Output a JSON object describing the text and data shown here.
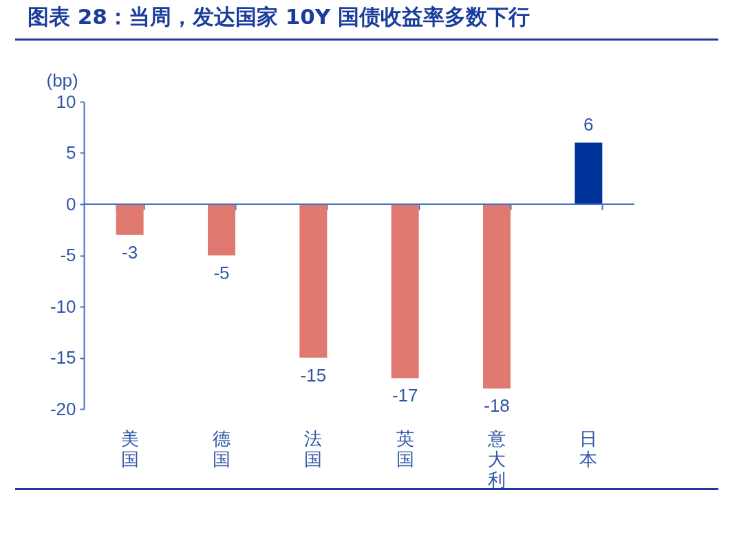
{
  "chart_data": {
    "type": "bar",
    "title": "图表 28：当周，发达国家 10Y 国债收益率多数下行",
    "ylabel": "(bp)",
    "categories": [
      "美国",
      "德国",
      "法国",
      "英国",
      "意大利",
      "日本"
    ],
    "values": [
      -3,
      -5,
      -15,
      -17,
      -18,
      6
    ],
    "colors": [
      "#e07a70",
      "#e07a70",
      "#e07a70",
      "#e07a70",
      "#e07a70",
      "#003399"
    ],
    "ylim": [
      -20,
      10
    ],
    "yticks": [
      -20,
      -15,
      -10,
      -5,
      0,
      5,
      10
    ],
    "data_labels": true,
    "ref_lines": [
      {
        "axis": "y",
        "value": 0,
        "color": "#4472c4"
      }
    ]
  }
}
